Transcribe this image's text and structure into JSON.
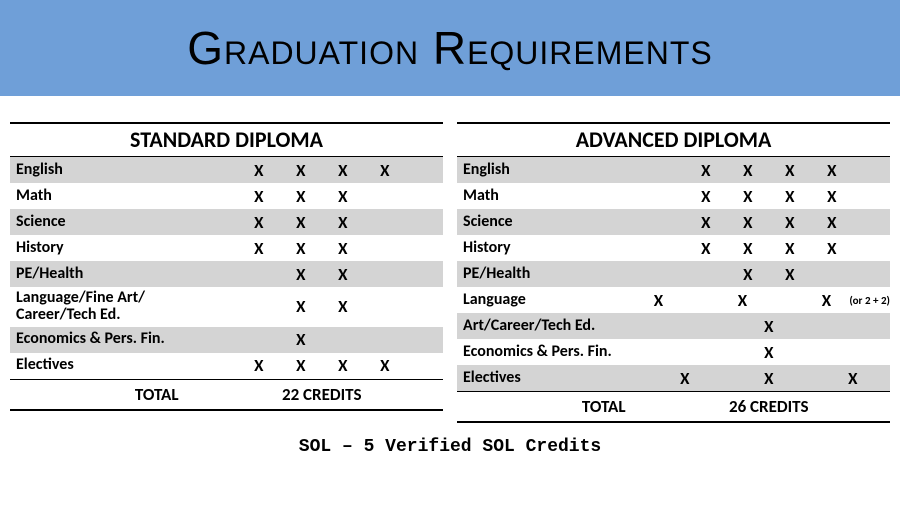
{
  "colors": {
    "banner_bg": "#6f9fd8",
    "shade_bg": "#d4d4d4",
    "page_bg": "#ffffff",
    "text": "#000000"
  },
  "title": "Graduation Requirements",
  "footnote": "SOL – 5 Verified SOL Credits",
  "mark_char": "X",
  "diplomas": [
    {
      "title": "STANDARD DIPLOMA",
      "rows": [
        {
          "label": "English",
          "marks": [
            "X",
            "X",
            "X",
            "X"
          ],
          "shade": true
        },
        {
          "label": "Math",
          "marks": [
            "X",
            "X",
            "X",
            ""
          ],
          "shade": false
        },
        {
          "label": "Science",
          "marks": [
            "X",
            "X",
            "X",
            ""
          ],
          "shade": true
        },
        {
          "label": "History",
          "marks": [
            "X",
            "X",
            "X",
            ""
          ],
          "shade": false
        },
        {
          "label": "PE/Health",
          "marks": [
            "",
            "X",
            "X",
            ""
          ],
          "shade": true
        },
        {
          "label": "Language/Fine Art/\nCareer/Tech Ed.",
          "marks": [
            "",
            "X",
            "X",
            ""
          ],
          "shade": false,
          "tall": true
        },
        {
          "label": "Economics & Pers. Fin.",
          "marks": [
            "",
            "X",
            "",
            ""
          ],
          "shade": true
        },
        {
          "label": "Electives",
          "marks": [
            "X",
            "X",
            "X",
            "X"
          ],
          "shade": false
        }
      ],
      "total_label": "TOTAL",
      "total_value": "22 CREDITS"
    },
    {
      "title": "ADVANCED DIPLOMA",
      "rows": [
        {
          "label": "English",
          "marks": [
            "X",
            "X",
            "X",
            "X"
          ],
          "shade": true
        },
        {
          "label": "Math",
          "marks": [
            "X",
            "X",
            "X",
            "X"
          ],
          "shade": false
        },
        {
          "label": "Science",
          "marks": [
            "X",
            "X",
            "X",
            "X"
          ],
          "shade": true
        },
        {
          "label": "History",
          "marks": [
            "X",
            "X",
            "X",
            "X"
          ],
          "shade": false
        },
        {
          "label": "PE/Health",
          "marks": [
            "",
            "X",
            "X",
            ""
          ],
          "shade": true
        },
        {
          "label": "Language",
          "marks": [
            "X",
            "",
            "X",
            "",
            "X"
          ],
          "shade": false,
          "note": "(or 2 + 2)"
        },
        {
          "label": "Art/Career/Tech Ed.",
          "marks": [
            "",
            "",
            "X",
            "",
            ""
          ],
          "shade": true
        },
        {
          "label": "Economics & Pers. Fin.",
          "marks": [
            "",
            "",
            "X",
            "",
            ""
          ],
          "shade": false
        },
        {
          "label": "Electives",
          "marks": [
            "X",
            "",
            "X",
            "",
            "X"
          ],
          "shade": true
        }
      ],
      "total_label": "TOTAL",
      "total_value": "26 CREDITS"
    }
  ]
}
